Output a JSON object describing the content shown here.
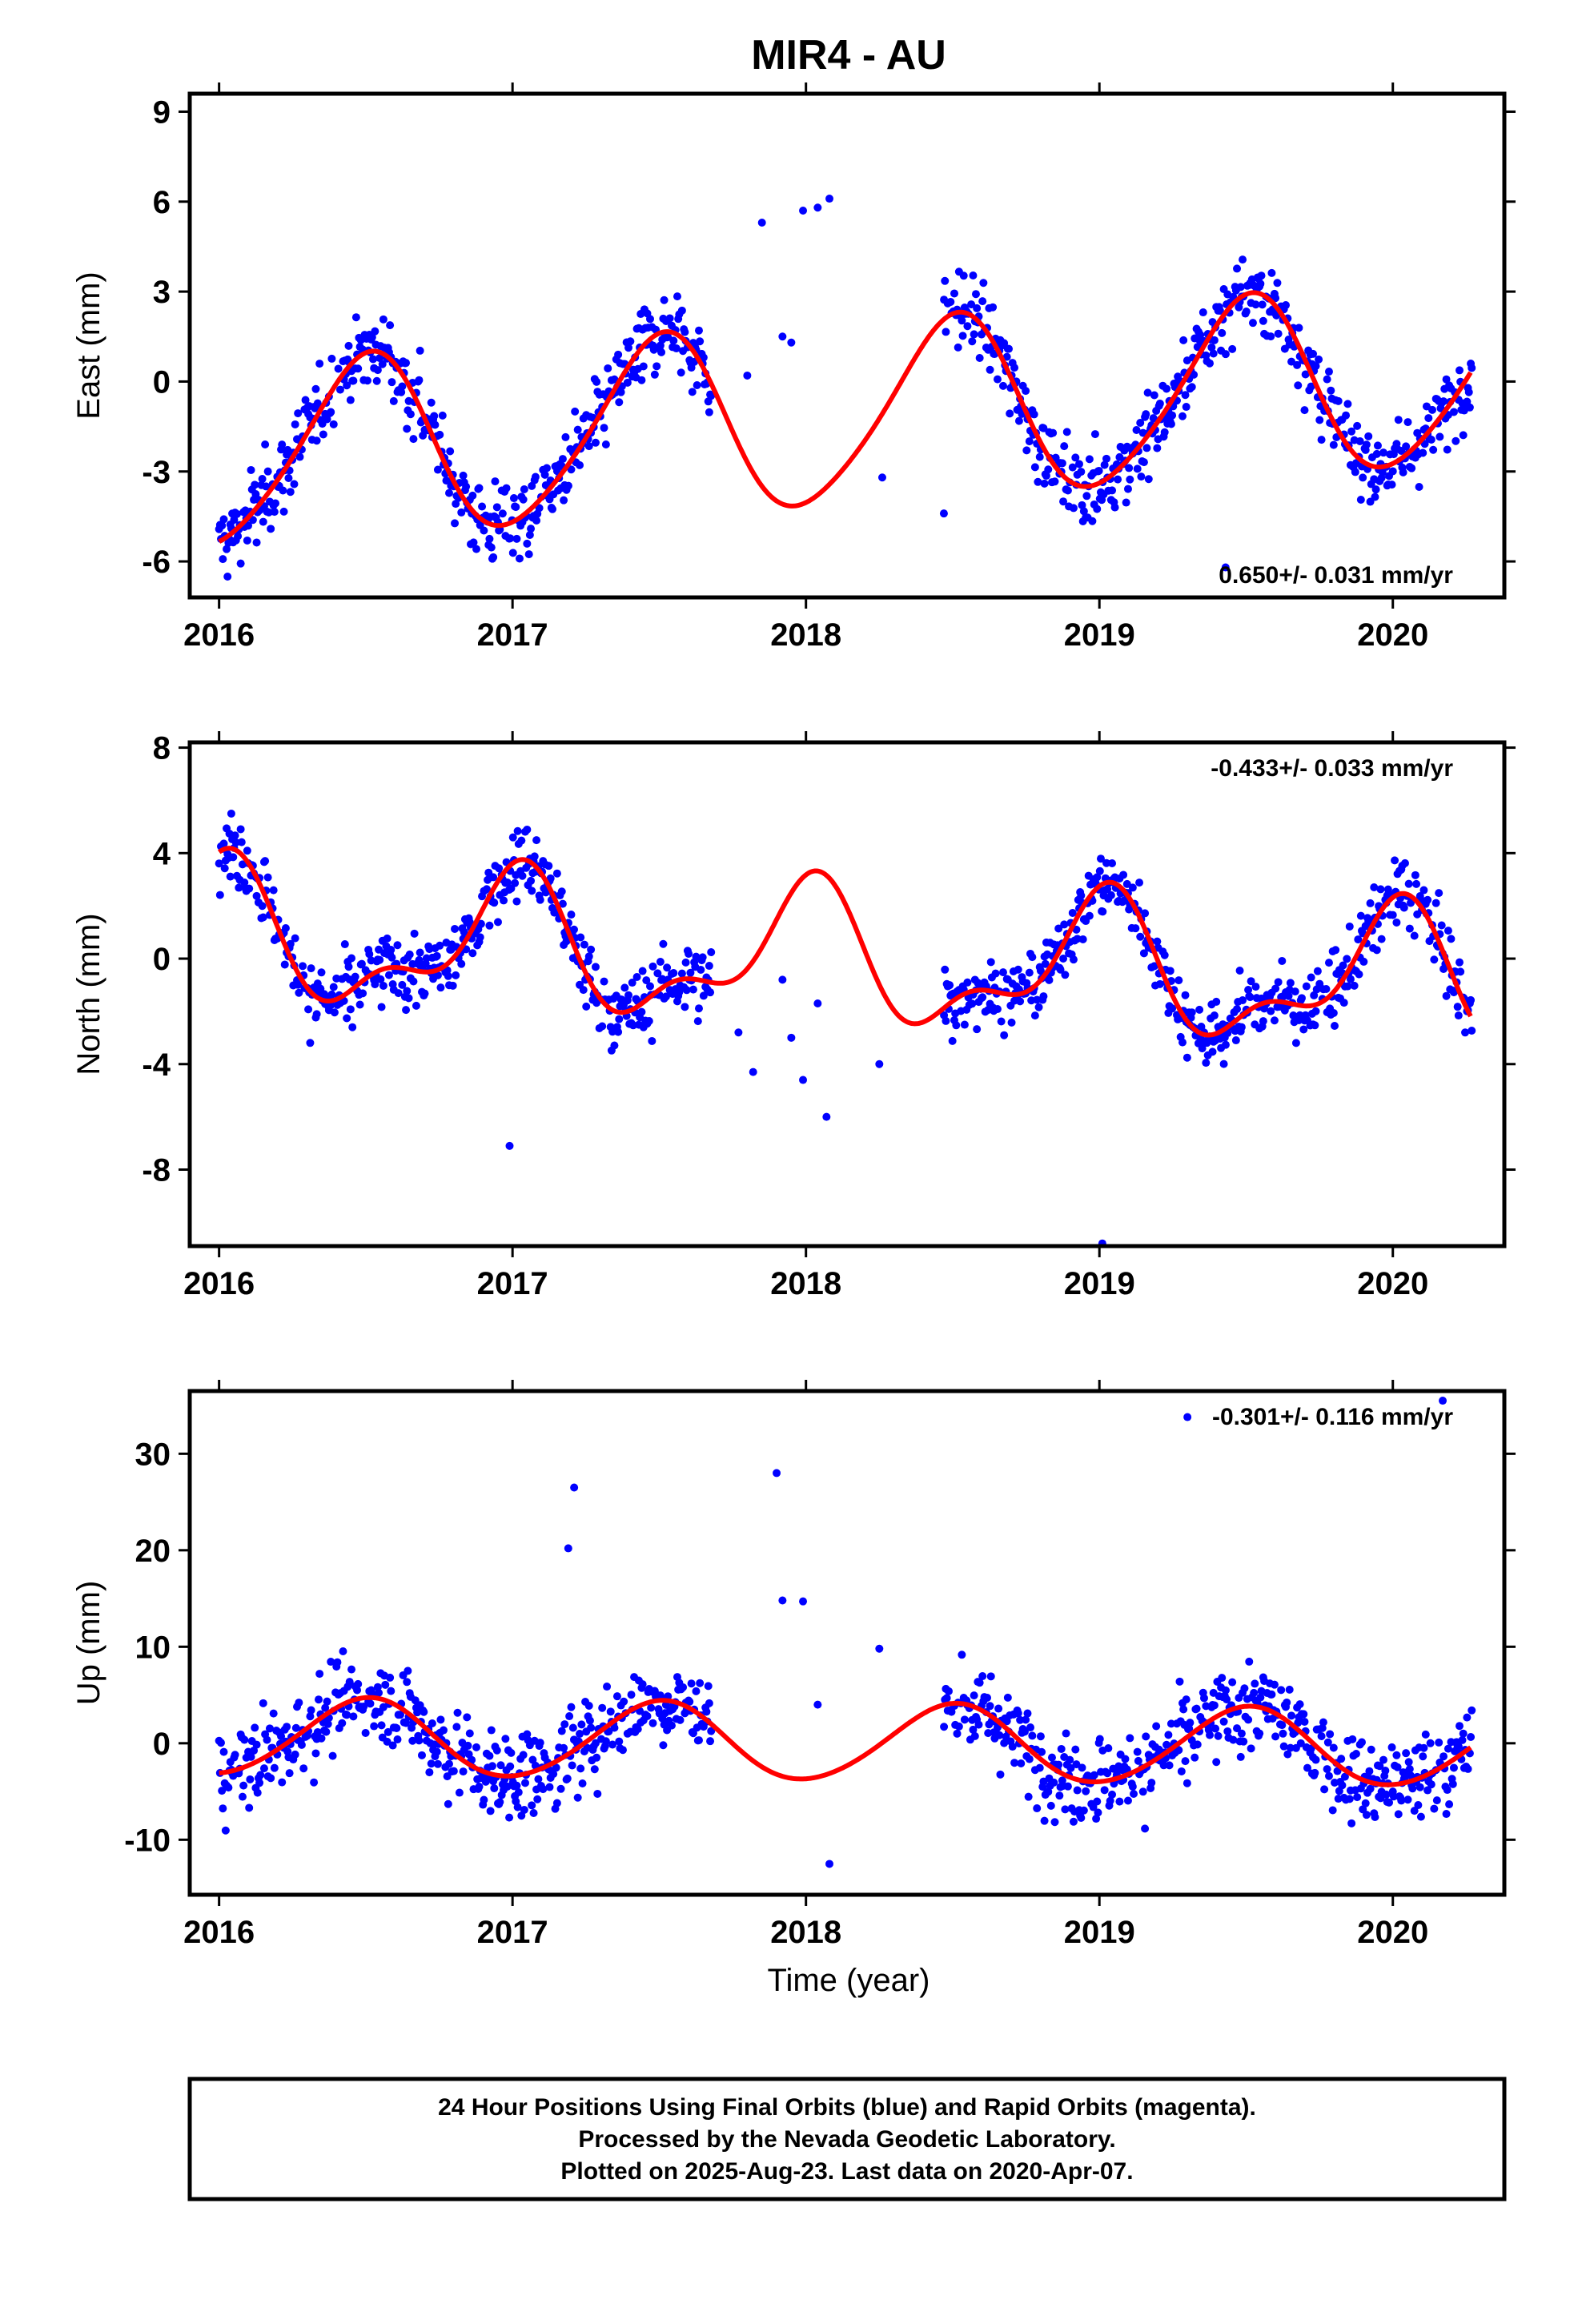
{
  "title": "MIR4 - AU",
  "x_axis_label": "Time (year)",
  "footer": {
    "line1": "24 Hour Positions Using Final Orbits (blue) and Rapid Orbits (magenta).",
    "line2": "Processed by the Nevada Geodetic Laboratory.",
    "line3": "Plotted on 2025-Aug-23. Last data on 2020-Apr-07."
  },
  "colors": {
    "points": "#0000ff",
    "fit": "#ff0000",
    "frame": "#000000"
  },
  "chart_data": [
    {
      "type": "scatter",
      "name": "east",
      "ylabel": "East (mm)",
      "xlim": [
        2015.9,
        2020.38
      ],
      "ylim": [
        -7.2,
        9.6
      ],
      "xticks": [
        2016,
        2017,
        2018,
        2019,
        2020
      ],
      "yticks": [
        -6,
        -3,
        0,
        3,
        6,
        9
      ],
      "rate_text": "0.650+/- 0.031 mm/yr",
      "rate_position": "bottom-right",
      "fit": {
        "offset": -2.55,
        "trend": 0.65,
        "annual_cos": 3.0,
        "annual_sin": 0.35,
        "semi_cos": 0.2,
        "semi_sin": 0.3,
        "noise": 1.2
      },
      "gaps": [
        [
          2017.68,
          2018.47
        ]
      ],
      "sparse_points": [
        [
          2017.8,
          0.2
        ],
        [
          2017.85,
          5.3
        ],
        [
          2017.92,
          1.5
        ],
        [
          2017.95,
          1.3
        ],
        [
          2017.99,
          5.7
        ],
        [
          2018.04,
          5.8
        ],
        [
          2018.08,
          6.1
        ],
        [
          2018.26,
          -3.2
        ],
        [
          2018.47,
          -4.4
        ],
        [
          2019.43,
          -6.2
        ]
      ]
    },
    {
      "type": "scatter",
      "name": "north",
      "ylabel": "North (mm)",
      "xlim": [
        2015.9,
        2020.38
      ],
      "ylim": [
        -10.9,
        8.2
      ],
      "xticks": [
        2016,
        2017,
        2018,
        2019,
        2020
      ],
      "yticks": [
        -8,
        -4,
        0,
        4,
        8
      ],
      "rate_text": "-0.433+/- 0.033 mm/yr",
      "rate_position": "top-right",
      "fit": {
        "offset": 0.85,
        "trend": -0.43,
        "annual_cos": -2.3,
        "annual_sin": -0.2,
        "semi_cos": 0.9,
        "semi_sin": 0.7,
        "noise": 1.3
      },
      "gaps": [
        [
          2017.68,
          2018.47
        ]
      ],
      "sparse_points": [
        [
          2017.77,
          -2.8
        ],
        [
          2017.82,
          -4.3
        ],
        [
          2017.92,
          -0.8
        ],
        [
          2017.95,
          -3.0
        ],
        [
          2017.99,
          -4.6
        ],
        [
          2018.04,
          -1.7
        ],
        [
          2018.07,
          -6.0
        ],
        [
          2018.25,
          -4.0
        ],
        [
          2016.99,
          -7.1
        ],
        [
          2019.01,
          -10.8
        ]
      ]
    },
    {
      "type": "scatter",
      "name": "up",
      "ylabel": "Up (mm)",
      "xlim": [
        2015.9,
        2020.38
      ],
      "ylim": [
        -15.7,
        36.5
      ],
      "xticks": [
        2016,
        2017,
        2018,
        2019,
        2020
      ],
      "yticks": [
        -10,
        0,
        10,
        20,
        30
      ],
      "rate_text": "-0.301+/- 0.116 mm/yr",
      "rate_position": "top-right",
      "fit": {
        "offset": 0.7,
        "trend": -0.3,
        "annual_cos": 4.0,
        "annual_sin": 0.4,
        "semi_cos": 0.2,
        "semi_sin": 0.2,
        "noise": 4.3
      },
      "gaps": [
        [
          2017.68,
          2018.47
        ]
      ],
      "sparse_points": [
        [
          2017.9,
          28.0
        ],
        [
          2017.92,
          14.8
        ],
        [
          2017.99,
          14.7
        ],
        [
          2018.04,
          4.0
        ],
        [
          2018.08,
          -12.5
        ],
        [
          2018.25,
          9.8
        ],
        [
          2020.17,
          35.5
        ],
        [
          2019.3,
          33.8
        ],
        [
          2017.21,
          26.5
        ],
        [
          2017.19,
          20.2
        ]
      ]
    }
  ]
}
